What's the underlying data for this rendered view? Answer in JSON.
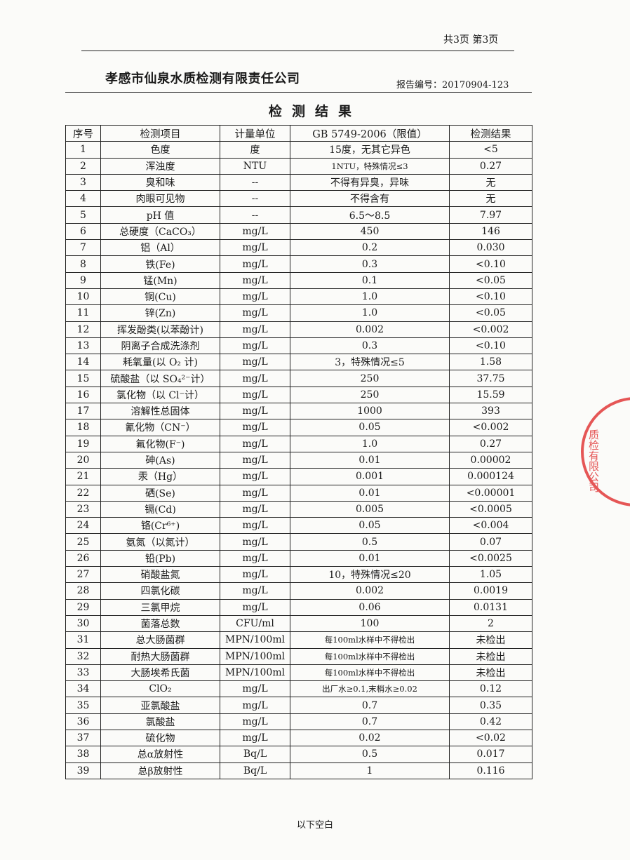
{
  "header": {
    "page_info": "共3页 第3页",
    "company": "孝感市仙泉水质检测有限责任公司",
    "report_no": "报告编号：20170904-123"
  },
  "title": "检测结果",
  "table": {
    "columns": [
      "序号",
      "检测项目",
      "计量单位",
      "GB 5749-2006（限值）",
      "检测结果"
    ],
    "rows": [
      [
        "1",
        "色度",
        "度",
        "15度，无其它异色",
        "<5"
      ],
      [
        "2",
        "浑浊度",
        "NTU",
        "1NTU，特殊情况≤3",
        "0.27"
      ],
      [
        "3",
        "臭和味",
        "--",
        "不得有异臭，异味",
        "无"
      ],
      [
        "4",
        "肉眼可见物",
        "--",
        "不得含有",
        "无"
      ],
      [
        "5",
        "pH 值",
        "--",
        "6.5～8.5",
        "7.97"
      ],
      [
        "6",
        "总硬度（CaCO₃）",
        "mg/L",
        "450",
        "146"
      ],
      [
        "7",
        "铝（Al）",
        "mg/L",
        "0.2",
        "0.030"
      ],
      [
        "8",
        "铁(Fe)",
        "mg/L",
        "0.3",
        "<0.10"
      ],
      [
        "9",
        "锰(Mn)",
        "mg/L",
        "0.1",
        "<0.05"
      ],
      [
        "10",
        "铜(Cu)",
        "mg/L",
        "1.0",
        "<0.10"
      ],
      [
        "11",
        "锌(Zn)",
        "mg/L",
        "1.0",
        "<0.05"
      ],
      [
        "12",
        "挥发酚类(以苯酚计)",
        "mg/L",
        "0.002",
        "<0.002"
      ],
      [
        "13",
        "阴离子合成洗涤剂",
        "mg/L",
        "0.3",
        "<0.10"
      ],
      [
        "14",
        "耗氧量(以 O₂ 计)",
        "mg/L",
        "3，特殊情况≤5",
        "1.58"
      ],
      [
        "15",
        "硫酸盐（以 SO₄²⁻计）",
        "mg/L",
        "250",
        "37.75"
      ],
      [
        "16",
        "氯化物（以 Cl⁻计）",
        "mg/L",
        "250",
        "15.59"
      ],
      [
        "17",
        "溶解性总固体",
        "mg/L",
        "1000",
        "393"
      ],
      [
        "18",
        "氰化物（CN⁻）",
        "mg/L",
        "0.05",
        "<0.002"
      ],
      [
        "19",
        "氟化物(F⁻)",
        "mg/L",
        "1.0",
        "0.27"
      ],
      [
        "20",
        "砷(As)",
        "mg/L",
        "0.01",
        "0.00002"
      ],
      [
        "21",
        "汞（Hg）",
        "mg/L",
        "0.001",
        "0.000124"
      ],
      [
        "22",
        "硒(Se)",
        "mg/L",
        "0.01",
        "<0.00001"
      ],
      [
        "23",
        "镉(Cd)",
        "mg/L",
        "0.005",
        "<0.0005"
      ],
      [
        "24",
        "铬(Cr⁶⁺)",
        "mg/L",
        "0.05",
        "<0.004"
      ],
      [
        "25",
        "氨氮（以氮计）",
        "mg/L",
        "0.5",
        "0.07"
      ],
      [
        "26",
        "铅(Pb)",
        "mg/L",
        "0.01",
        "<0.0025"
      ],
      [
        "27",
        "硝酸盐氮",
        "mg/L",
        "10，特殊情况≤20",
        "1.05"
      ],
      [
        "28",
        "四氯化碳",
        "mg/L",
        "0.002",
        "0.0019"
      ],
      [
        "29",
        "三氯甲烷",
        "mg/L",
        "0.06",
        "0.0131"
      ],
      [
        "30",
        "菌落总数",
        "CFU/ml",
        "100",
        "2"
      ],
      [
        "31",
        "总大肠菌群",
        "MPN/100ml",
        "每100ml水样中不得检出",
        "未检出"
      ],
      [
        "32",
        "耐热大肠菌群",
        "MPN/100ml",
        "每100ml水样中不得检出",
        "未检出"
      ],
      [
        "33",
        "大肠埃希氏菌",
        "MPN/100ml",
        "每100ml水样中不得检出",
        "未检出"
      ],
      [
        "34",
        "ClO₂",
        "mg/L",
        "出厂水≥0.1,末梢水≥0.02",
        "0.12"
      ],
      [
        "35",
        "亚氯酸盐",
        "mg/L",
        "0.7",
        "0.35"
      ],
      [
        "36",
        "氯酸盐",
        "mg/L",
        "0.7",
        "0.42"
      ],
      [
        "37",
        "硫化物",
        "mg/L",
        "0.02",
        "<0.02"
      ],
      [
        "38",
        "总α放射性",
        "Bq/L",
        "0.5",
        "0.017"
      ],
      [
        "39",
        "总β放射性",
        "Bq/L",
        "1",
        "0.116"
      ]
    ]
  },
  "footer": "以下空白",
  "stamp": {
    "color": "#e23a3a",
    "text": "质检有限公司 章"
  }
}
